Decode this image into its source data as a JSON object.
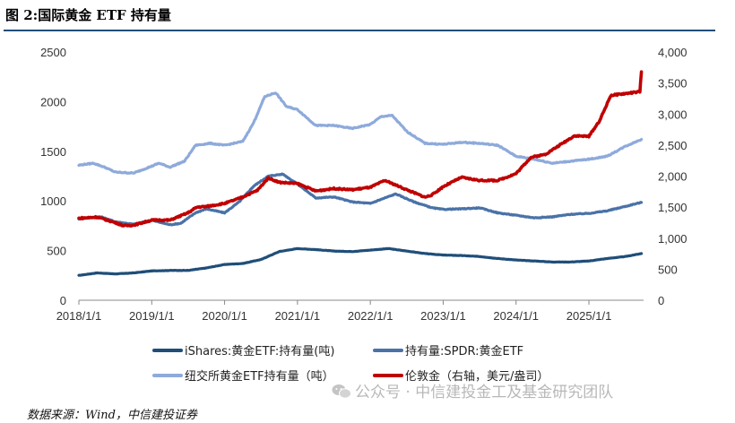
{
  "figure_title": "图 2:国际黄金 ETF 持有量",
  "source_note": "数据来源：Wind，中信建投证券",
  "watermark": "公众号 · 中信建投金工及基金研究团队",
  "chart_data": {
    "type": "line",
    "x_ticks": [
      "2018/1/1",
      "2019/1/1",
      "2020/1/1",
      "2021/1/1",
      "2022/1/1",
      "2023/1/1",
      "2024/1/1",
      "2025/1/1"
    ],
    "y_left_ticks": [
      "0",
      "500",
      "1000",
      "1500",
      "2000",
      "2500"
    ],
    "y_right_ticks": [
      "0",
      "500",
      "1,000",
      "1,500",
      "2,000",
      "2,500",
      "3,000",
      "3,500",
      "4,000"
    ],
    "ylim_left": [
      0,
      2500
    ],
    "ylim_right": [
      0,
      4000
    ],
    "xlim": [
      2018.0,
      2025.75
    ],
    "grid": false,
    "legend_position": "bottom",
    "series": [
      {
        "name": "iShares:黄金ETF:持有量(吨)",
        "axis": "left",
        "color": "#1f4e79",
        "x": [
          2018.0,
          2018.25,
          2018.5,
          2018.75,
          2019.0,
          2019.25,
          2019.5,
          2019.75,
          2020.0,
          2020.25,
          2020.5,
          2020.75,
          2021.0,
          2021.25,
          2021.5,
          2021.75,
          2022.0,
          2022.25,
          2022.5,
          2022.75,
          2023.0,
          2023.25,
          2023.5,
          2023.75,
          2024.0,
          2024.25,
          2024.5,
          2024.75,
          2025.0,
          2025.25,
          2025.5,
          2025.72
        ],
        "values": [
          250,
          275,
          265,
          275,
          295,
          300,
          300,
          325,
          360,
          370,
          410,
          490,
          520,
          510,
          495,
          490,
          505,
          520,
          495,
          470,
          455,
          450,
          440,
          420,
          405,
          395,
          385,
          385,
          395,
          420,
          440,
          470
        ]
      },
      {
        "name": "持有量:SPDR:黄金ETF",
        "axis": "left",
        "color": "#4a72a8",
        "x": [
          2018.0,
          2018.15,
          2018.3,
          2018.5,
          2018.75,
          2019.0,
          2019.25,
          2019.4,
          2019.6,
          2019.75,
          2020.0,
          2020.2,
          2020.4,
          2020.6,
          2020.8,
          2021.0,
          2021.25,
          2021.5,
          2021.75,
          2022.0,
          2022.2,
          2022.35,
          2022.6,
          2022.85,
          2023.0,
          2023.25,
          2023.5,
          2023.75,
          2024.0,
          2024.25,
          2024.5,
          2024.75,
          2025.0,
          2025.25,
          2025.5,
          2025.72
        ],
        "values": [
          820,
          830,
          840,
          790,
          765,
          805,
          760,
          775,
          880,
          920,
          880,
          990,
          1150,
          1250,
          1270,
          1170,
          1030,
          1040,
          990,
          975,
          1030,
          1070,
          990,
          930,
          915,
          920,
          930,
          880,
          855,
          830,
          840,
          865,
          875,
          900,
          945,
          985
        ]
      },
      {
        "name": "纽交所黄金ETF持有量（吨）",
        "axis": "left",
        "color": "#8eaadb",
        "x": [
          2018.0,
          2018.2,
          2018.35,
          2018.5,
          2018.75,
          2019.0,
          2019.1,
          2019.25,
          2019.45,
          2019.6,
          2019.8,
          2020.0,
          2020.25,
          2020.4,
          2020.55,
          2020.7,
          2020.85,
          2021.0,
          2021.25,
          2021.5,
          2021.75,
          2022.0,
          2022.15,
          2022.3,
          2022.5,
          2022.75,
          2023.0,
          2023.25,
          2023.5,
          2023.75,
          2024.0,
          2024.25,
          2024.5,
          2024.75,
          2025.0,
          2025.25,
          2025.5,
          2025.72
        ],
        "values": [
          1360,
          1380,
          1340,
          1290,
          1280,
          1350,
          1380,
          1340,
          1400,
          1560,
          1580,
          1560,
          1600,
          1790,
          2050,
          2090,
          1950,
          1920,
          1760,
          1760,
          1730,
          1770,
          1850,
          1860,
          1700,
          1580,
          1570,
          1590,
          1580,
          1560,
          1450,
          1420,
          1380,
          1400,
          1420,
          1450,
          1550,
          1620
        ]
      },
      {
        "name": "伦敦金（右轴，美元/盎司）",
        "axis": "right",
        "color": "#c00000",
        "x": [
          2018.0,
          2018.25,
          2018.5,
          2018.62,
          2018.75,
          2019.0,
          2019.25,
          2019.5,
          2019.62,
          2019.75,
          2020.0,
          2020.2,
          2020.45,
          2020.6,
          2020.75,
          2021.0,
          2021.25,
          2021.5,
          2021.75,
          2022.0,
          2022.2,
          2022.5,
          2022.75,
          2022.85,
          2023.0,
          2023.25,
          2023.5,
          2023.75,
          2024.0,
          2024.2,
          2024.4,
          2024.6,
          2024.8,
          2025.0,
          2025.15,
          2025.3,
          2025.5,
          2025.7,
          2025.72
        ],
        "values": [
          1320,
          1340,
          1250,
          1200,
          1210,
          1290,
          1290,
          1410,
          1500,
          1510,
          1560,
          1640,
          1770,
          1970,
          1900,
          1880,
          1760,
          1800,
          1780,
          1820,
          1930,
          1780,
          1660,
          1700,
          1830,
          1980,
          1930,
          1930,
          2040,
          2300,
          2350,
          2500,
          2650,
          2640,
          2900,
          3300,
          3330,
          3360,
          3680
        ]
      }
    ]
  }
}
